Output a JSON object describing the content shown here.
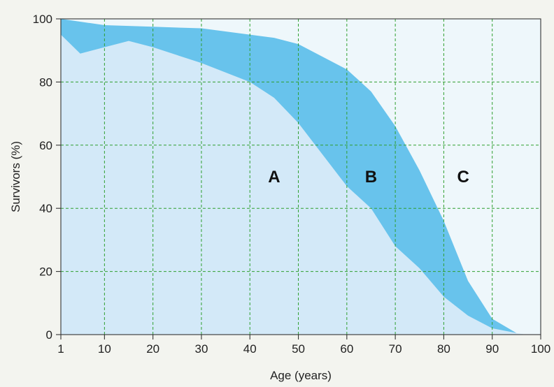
{
  "chart_data": {
    "type": "area",
    "xlabel": "Age (years)",
    "ylabel": "Survivors (%)",
    "xlim": [
      1,
      100
    ],
    "ylim": [
      0,
      100
    ],
    "x_ticks": [
      1,
      10,
      20,
      30,
      40,
      50,
      60,
      70,
      80,
      90,
      100
    ],
    "y_ticks": [
      0,
      20,
      40,
      60,
      80,
      100
    ],
    "grid": true,
    "series": [
      {
        "points": [
          [
            1,
            95
          ],
          [
            5,
            89
          ],
          [
            10,
            91
          ],
          [
            15,
            93
          ],
          [
            20,
            91
          ],
          [
            30,
            86
          ],
          [
            40,
            80
          ],
          [
            45,
            75
          ],
          [
            50,
            67
          ],
          [
            55,
            57
          ],
          [
            60,
            47
          ],
          [
            65,
            40
          ],
          [
            70,
            28
          ],
          [
            75,
            21
          ],
          [
            80,
            12
          ],
          [
            85,
            6
          ],
          [
            90,
            2
          ],
          [
            95,
            0.5
          ],
          [
            97,
            0
          ]
        ]
      },
      {
        "points": [
          [
            1,
            100
          ],
          [
            10,
            98
          ],
          [
            20,
            97.5
          ],
          [
            30,
            97
          ],
          [
            40,
            95
          ],
          [
            45,
            94
          ],
          [
            50,
            92
          ],
          [
            55,
            88
          ],
          [
            60,
            84
          ],
          [
            65,
            77
          ],
          [
            70,
            66
          ],
          [
            75,
            52
          ],
          [
            80,
            36
          ],
          [
            85,
            17
          ],
          [
            90,
            5
          ],
          [
            95,
            0.5
          ],
          [
            97,
            0
          ]
        ]
      }
    ],
    "annotations": [
      {
        "text": "A",
        "x": 45,
        "y": 50
      },
      {
        "text": "B",
        "x": 65,
        "y": 50
      },
      {
        "text": "C",
        "x": 84,
        "y": 50
      }
    ],
    "colors": {
      "page_bg": "#f3f4ef",
      "plot_bg": "#eef7fb",
      "region_a": "#d3e9f8",
      "region_b": "#68c3ec",
      "grid": "#2f9f2f",
      "axis": "#333333",
      "text": "#222222"
    }
  }
}
